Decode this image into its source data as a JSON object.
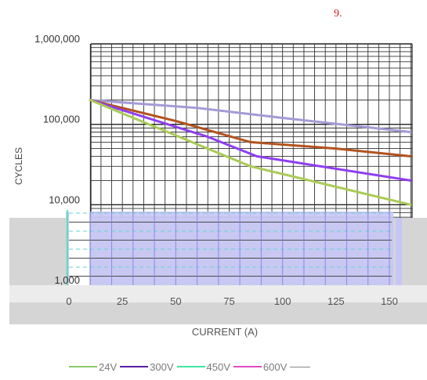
{
  "page": {
    "number_label": "9."
  },
  "chart_data": {
    "type": "line",
    "title": "",
    "xlabel": "CURRENT (A)",
    "ylabel": "CYCLES",
    "x_ticks": [
      0,
      25,
      50,
      75,
      100,
      125,
      150
    ],
    "x_tick_labels": [
      "0",
      "25",
      "50",
      "75",
      "100",
      "125",
      "150"
    ],
    "y_ticks": [
      1000,
      10000,
      100000,
      1000000
    ],
    "y_tick_labels": [
      "1,000",
      "10,000",
      "100,000",
      "1,000,000"
    ],
    "xlim": [
      0,
      160
    ],
    "ylim": [
      1000,
      1000000
    ],
    "y_scale": "log",
    "grid": true,
    "legend": [
      {
        "name": "24V",
        "color": "#8cc96b"
      },
      {
        "name": "300V",
        "color": "#5b1fa6"
      },
      {
        "name": "450V",
        "color": "#3fe6a1"
      },
      {
        "name": "600V",
        "color": "#e04cc0"
      }
    ],
    "legend_position": "bottom",
    "series": [
      {
        "color": "#a69ad6",
        "points": [
          [
            10,
            200000
          ],
          [
            60,
            160000
          ],
          [
            100,
            120000
          ],
          [
            160,
            80000
          ]
        ]
      },
      {
        "color": "#b3521e",
        "points": [
          [
            10,
            200000
          ],
          [
            50,
            110000
          ],
          [
            85,
            60000
          ],
          [
            125,
            50000
          ],
          [
            160,
            40000
          ]
        ]
      },
      {
        "color": "#8f3ef0",
        "points": [
          [
            10,
            200000
          ],
          [
            65,
            70000
          ],
          [
            88,
            40000
          ],
          [
            160,
            20000
          ]
        ]
      },
      {
        "color": "#aacb55",
        "points": [
          [
            10,
            200000
          ],
          [
            85,
            30000
          ],
          [
            160,
            10000
          ]
        ]
      }
    ]
  }
}
